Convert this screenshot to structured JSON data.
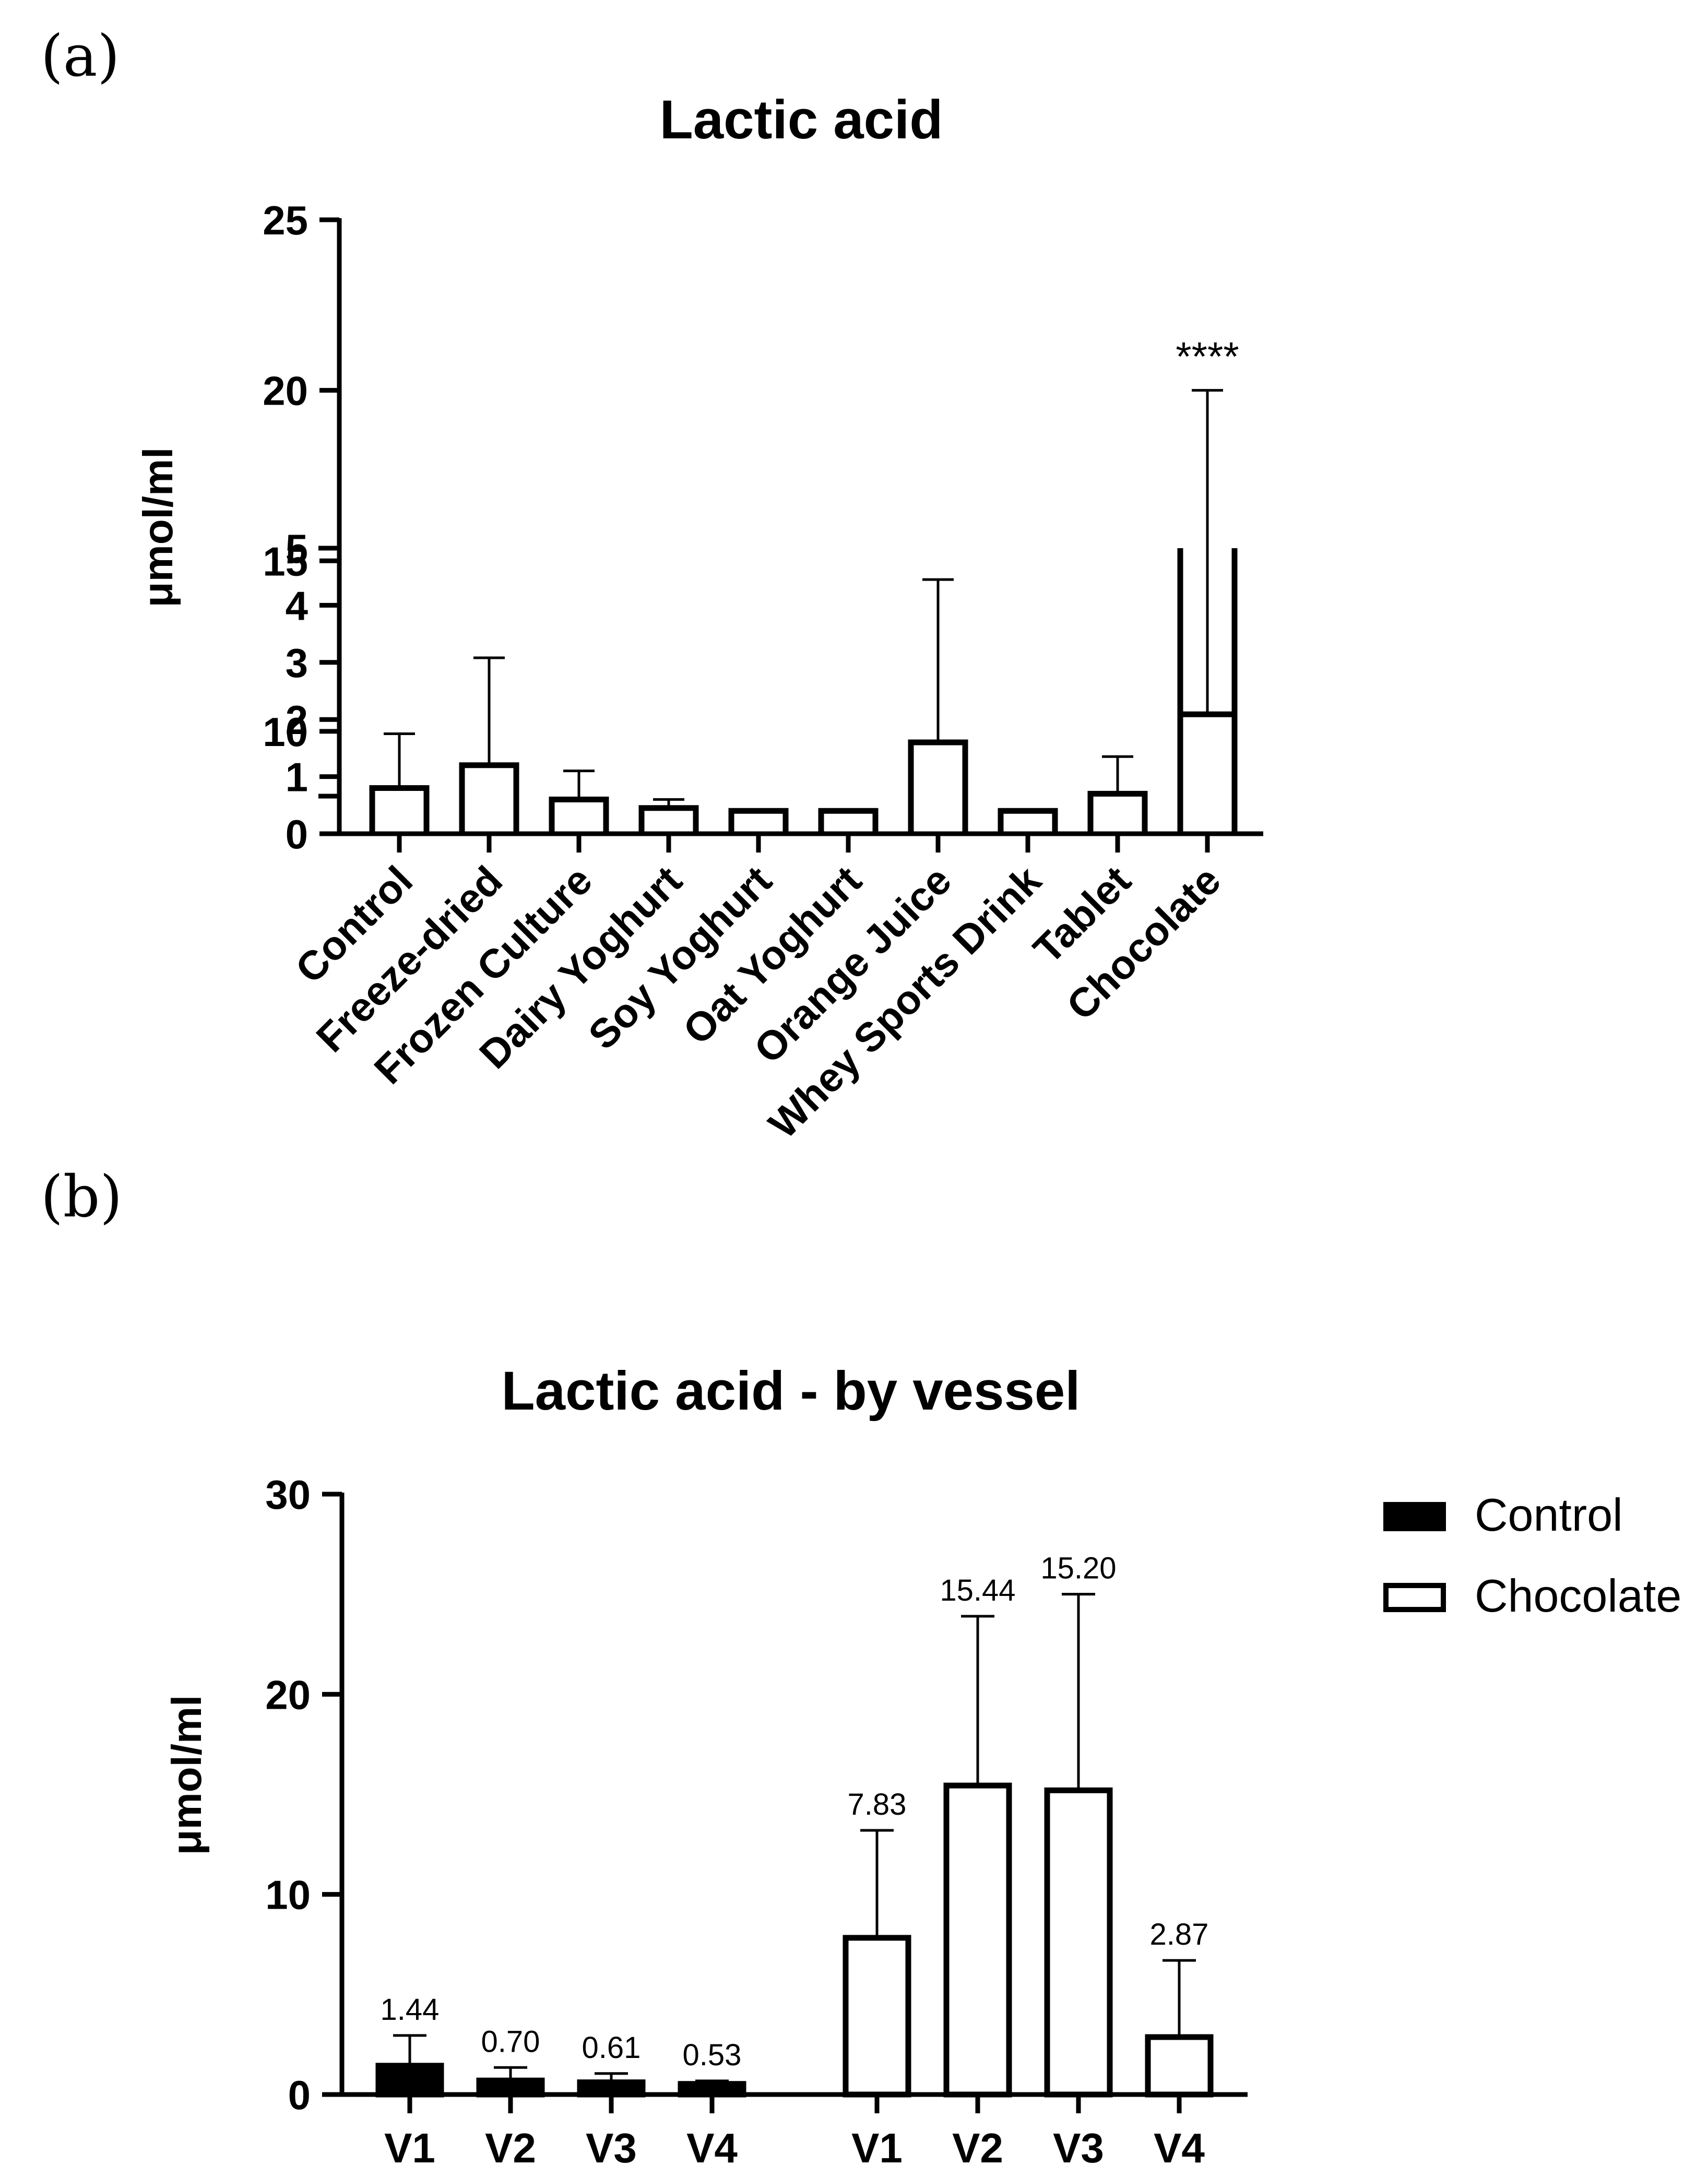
{
  "colors": {
    "ink": "#000000",
    "paper": "#ffffff"
  },
  "chart_data": [
    {
      "panel_label": "(a)",
      "type": "bar",
      "title": "Lactic acid",
      "xlabel": "",
      "ylabel": "μmol/ml",
      "axis_break": {
        "lower_range": [
          0,
          5
        ],
        "upper_range": [
          8.1,
          25
        ]
      },
      "yticks_lower": [
        "0",
        "1",
        "2",
        "3",
        "4",
        "5"
      ],
      "yticks_upper": [
        "10",
        "15",
        "20",
        "25"
      ],
      "categories": [
        "Control",
        "Freeze-dried",
        "Frozen Culture",
        "Dairy Yoghurt",
        "Soy Yoghurt",
        "Oat Yoghurt",
        "Orange Juice",
        "Whey Sports Drink",
        "Tablet",
        "Chocolate"
      ],
      "values": [
        0.8,
        1.2,
        0.6,
        0.45,
        0.4,
        0.4,
        1.6,
        0.4,
        0.7,
        10.5
      ],
      "error_upper": [
        1.75,
        3.08,
        1.1,
        0.6,
        null,
        null,
        4.45,
        null,
        1.35,
        20.0
      ],
      "annotations": [
        {
          "category": "Chocolate",
          "text": "****"
        }
      ]
    },
    {
      "panel_label": "(b)",
      "type": "bar",
      "title": "Lactic acid - by vessel",
      "xlabel": "",
      "ylabel": "μmol/ml",
      "ylim": [
        0,
        30
      ],
      "yticks": [
        "0",
        "10",
        "20",
        "30"
      ],
      "categories": [
        "V1",
        "V2",
        "V3",
        "V4"
      ],
      "series": [
        {
          "name": "Control",
          "fill": "#000000",
          "values": [
            1.44,
            0.7,
            0.61,
            0.53
          ],
          "labels": [
            "1.44",
            "0.70",
            "0.61",
            "0.53"
          ],
          "error_upper": [
            2.95,
            1.35,
            1.05,
            0.68
          ]
        },
        {
          "name": "Chocolate",
          "fill": "#ffffff",
          "values": [
            7.83,
            15.44,
            15.2,
            2.87
          ],
          "labels": [
            "7.83",
            "15.44",
            "15.20",
            "2.87"
          ],
          "error_upper": [
            13.2,
            23.9,
            25.0,
            6.7
          ]
        }
      ],
      "legend": {
        "position": "top-right"
      }
    }
  ]
}
